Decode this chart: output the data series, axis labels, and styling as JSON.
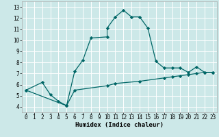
{
  "xlabel": "Humidex (Indice chaleur)",
  "ylabel": "",
  "bg_color": "#cce8e8",
  "grid_color": "#ffffff",
  "line_color": "#006666",
  "line1_x": [
    0,
    2,
    3,
    4,
    5,
    5,
    6,
    7,
    8,
    10,
    10,
    11,
    12,
    13,
    14,
    15,
    16,
    17,
    18,
    19,
    20,
    21,
    22,
    23
  ],
  "line1_y": [
    5.5,
    6.2,
    5.1,
    4.5,
    4.1,
    4.1,
    7.2,
    8.2,
    10.2,
    10.3,
    11.1,
    12.1,
    12.7,
    12.1,
    12.1,
    11.1,
    8.1,
    7.5,
    7.5,
    7.5,
    7.1,
    7.6,
    7.1,
    7.1
  ],
  "line2_x": [
    0,
    5,
    6,
    10,
    11,
    14,
    17,
    18,
    19,
    20,
    21,
    22,
    23
  ],
  "line2_y": [
    5.5,
    4.1,
    5.5,
    5.9,
    6.1,
    6.3,
    6.6,
    6.7,
    6.8,
    6.9,
    7.0,
    7.1,
    7.1
  ],
  "xlim": [
    -0.5,
    23.5
  ],
  "ylim": [
    3.5,
    13.5
  ],
  "xticks": [
    0,
    1,
    2,
    3,
    4,
    5,
    6,
    7,
    8,
    9,
    10,
    11,
    12,
    13,
    14,
    15,
    16,
    17,
    18,
    19,
    20,
    21,
    22,
    23
  ],
  "xticklabels": [
    "0",
    "1",
    "2",
    "3",
    "4",
    "5",
    "6",
    "7",
    "8",
    "9",
    "10",
    "11",
    "12",
    "13",
    "14",
    "15",
    "16",
    "17",
    "18",
    "19",
    "20",
    "21",
    "22",
    "23"
  ],
  "yticks": [
    4,
    5,
    6,
    7,
    8,
    9,
    10,
    11,
    12,
    13
  ],
  "yticklabels": [
    "4",
    "5",
    "6",
    "7",
    "8",
    "9",
    "10",
    "11",
    "12",
    "13"
  ],
  "tick_fontsize": 5.5,
  "label_fontsize": 6.5
}
